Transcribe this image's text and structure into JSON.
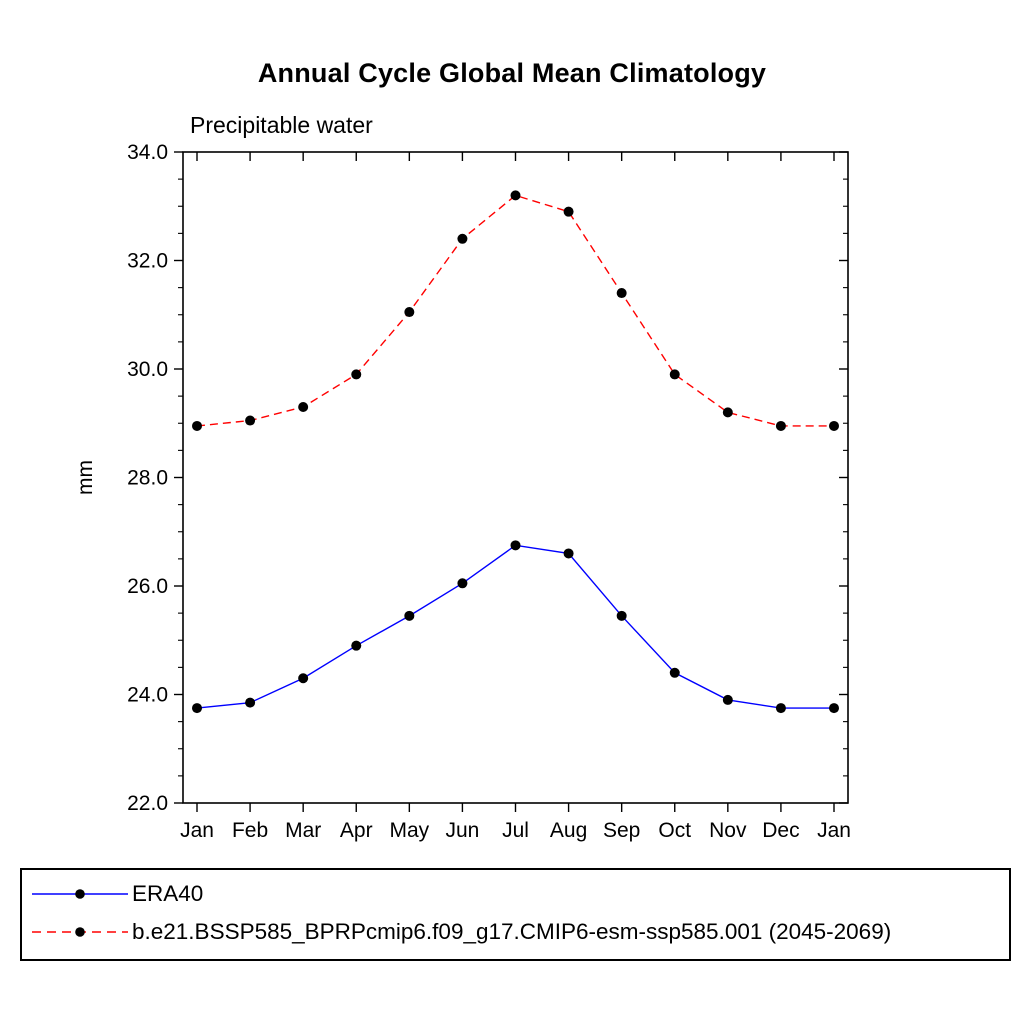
{
  "page": {
    "background": "#ffffff"
  },
  "chart_data": {
    "type": "line",
    "title": "Annual Cycle Global Mean Climatology",
    "subtitle": "Precipitable water",
    "xlabel": "",
    "ylabel": "mm",
    "categories": [
      "Jan",
      "Feb",
      "Mar",
      "Apr",
      "May",
      "Jun",
      "Jul",
      "Aug",
      "Sep",
      "Oct",
      "Nov",
      "Dec",
      "Jan"
    ],
    "ylim": [
      22.0,
      34.0
    ],
    "ytick_step": 2.0,
    "ytick_minor_step": 0.5,
    "ytick_labels": [
      "22.0",
      "24.0",
      "26.0",
      "28.0",
      "30.0",
      "32.0",
      "34.0"
    ],
    "grid": false,
    "legend_position": "bottom",
    "marker_color": "#000000",
    "axis_color": "#000000",
    "series": [
      {
        "name": "ERA40",
        "color": "#0000ff",
        "style": "solid",
        "marker": "filled-circle",
        "values": [
          23.75,
          23.85,
          24.3,
          24.9,
          25.45,
          26.05,
          26.75,
          26.6,
          25.45,
          24.4,
          23.9,
          23.75,
          23.75
        ]
      },
      {
        "name": "b.e21.BSSP585_BPRPcmip6.f09_g17.CMIP6-esm-ssp585.001 (2045-2069)",
        "color": "#ff0000",
        "style": "dashed",
        "marker": "filled-circle",
        "values": [
          28.95,
          29.05,
          29.3,
          29.9,
          31.05,
          32.4,
          33.2,
          32.9,
          31.4,
          29.9,
          29.2,
          28.95,
          28.95
        ]
      }
    ]
  }
}
